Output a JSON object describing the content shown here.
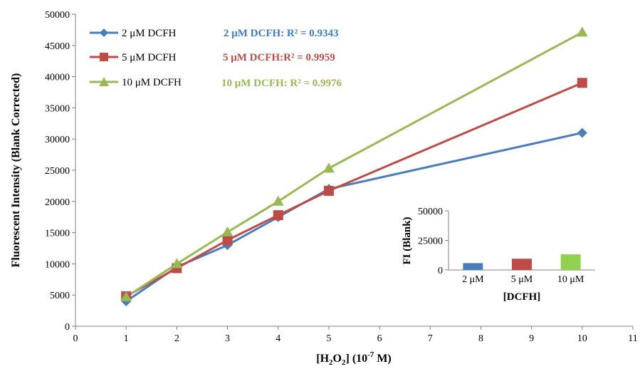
{
  "chart_data": [
    {
      "type": "line",
      "title": "",
      "xlabel": "[H₂O₂] (10⁻⁷ M)",
      "xlabel_parts": {
        "pre": "[H",
        "sub1": "2",
        "mid": "O",
        "sub2": "2",
        "post1": "] (10",
        "sup": "-7",
        "post2": " M)"
      },
      "ylabel": "Fluorescent Intensity (Blank Corrected)",
      "xlim": [
        0,
        11
      ],
      "ylim": [
        0,
        50000
      ],
      "xticks": [
        "0",
        "1",
        "2",
        "3",
        "4",
        "5",
        "6",
        "7",
        "8",
        "9",
        "10",
        "11"
      ],
      "yticks": [
        "0",
        "5000",
        "10000",
        "15000",
        "20000",
        "25000",
        "30000",
        "35000",
        "40000",
        "45000",
        "50000"
      ],
      "grid": false,
      "legend_position": "top-left",
      "x": [
        1,
        2,
        3,
        4,
        5,
        10
      ],
      "series": [
        {
          "name": "2 μM DCFH",
          "marker": "diamond",
          "color": "#4a7ebb",
          "values": [
            4000,
            9500,
            13000,
            17500,
            22000,
            31000
          ]
        },
        {
          "name": "5 μM DCFH",
          "marker": "square",
          "color": "#be4b48",
          "values": [
            4800,
            9300,
            13800,
            17800,
            21700,
            39000
          ]
        },
        {
          "name": "10 μM DCFH",
          "marker": "triangle",
          "color": "#98b954",
          "values": [
            4700,
            10000,
            15100,
            20000,
            25300,
            47100
          ]
        }
      ],
      "annotations": [
        {
          "text": "2 μM DCFH: R² = 0.9343",
          "color": "#3b7dc4"
        },
        {
          "text": "5 μM DCFH:R² = 0.9959",
          "color": "#be4b48"
        },
        {
          "text": "10 μM DCFH: R² = 0.9976",
          "color": "#98b954"
        }
      ]
    },
    {
      "type": "bar",
      "title": "",
      "xlabel": "[DCFH]",
      "ylabel": "FI (Blank)",
      "ylim": [
        0,
        50000
      ],
      "yticks": [
        "0",
        "25000",
        "50000"
      ],
      "categories": [
        "2 μM",
        "5 μM",
        "10 μM"
      ],
      "values": [
        5800,
        9500,
        13200
      ],
      "colors": [
        "#4a7ebb",
        "#be4b48",
        "#92d050"
      ]
    }
  ]
}
